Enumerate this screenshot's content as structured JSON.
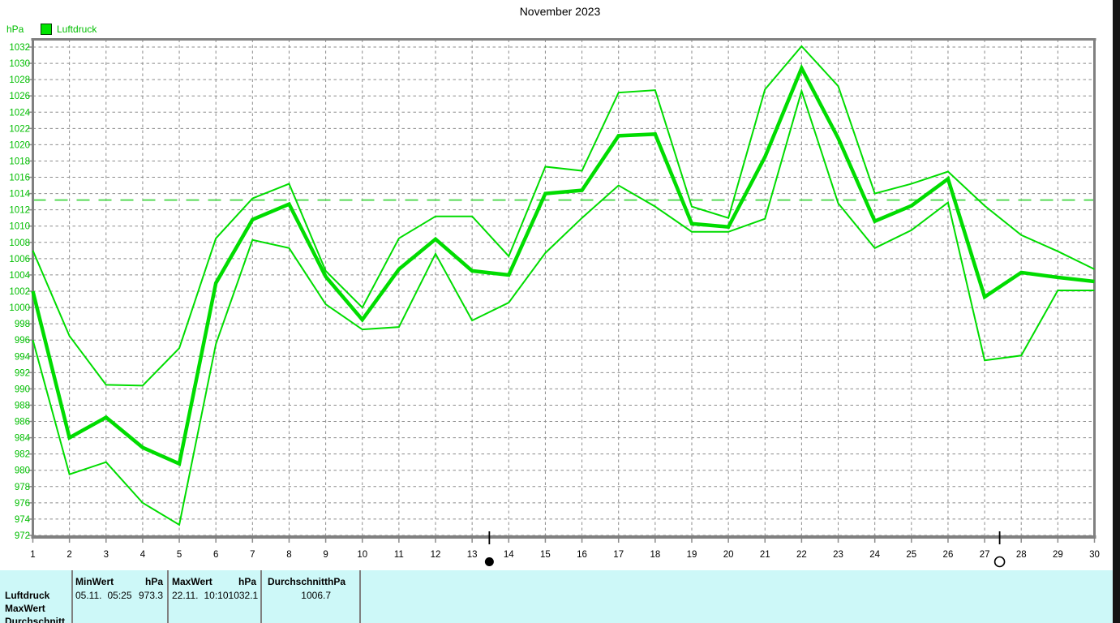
{
  "title": "November 2023",
  "y_axis_unit": "hPa",
  "legend": {
    "label": "Luftdruck"
  },
  "colors": {
    "series_green": "#00DC00",
    "label_green": "#00BE00",
    "reference_green": "#5ADB5A",
    "grid_grey": "#8C8C8C",
    "axis_grey": "#808080",
    "tick_black": "#000000",
    "table_background": "#CDF8F8"
  },
  "chart_data": {
    "type": "line",
    "title": "November 2023",
    "ylabel": "hPa",
    "xlabel": "",
    "x": [
      1,
      2,
      3,
      4,
      5,
      6,
      7,
      8,
      9,
      10,
      11,
      12,
      13,
      14,
      15,
      16,
      17,
      18,
      19,
      20,
      21,
      22,
      23,
      24,
      25,
      26,
      27,
      28,
      29,
      30
    ],
    "ylim": [
      972,
      1032
    ],
    "y_tick_step": 2,
    "grid": true,
    "legend_position": "top-left",
    "reference_line": {
      "value": 1013.2,
      "style": "dashed"
    },
    "series": [
      {
        "role": "daily-max",
        "values": [
          1007,
          996.5,
          990.5,
          990.4,
          995,
          1008.5,
          1013.4,
          1015.2,
          1004.5,
          1000,
          1008.5,
          1011.2,
          1011.2,
          1006.3,
          1017.3,
          1016.8,
          1026.4,
          1026.7,
          1012.4,
          1011,
          1026.8,
          1032.1,
          1027.2,
          1014,
          1015.2,
          1016.7,
          1012.5,
          1008.9,
          1006.9,
          1004.7
        ]
      },
      {
        "role": "daily-mean",
        "values": [
          1002,
          984,
          986.5,
          982.8,
          980.8,
          1003,
          1010.8,
          1012.7,
          1003.8,
          998.5,
          1004.7,
          1008.4,
          1004.5,
          1004,
          1014,
          1014.4,
          1021.1,
          1021.3,
          1010.3,
          1009.9,
          1018.5,
          1029.4,
          1020.8,
          1010.6,
          1012.5,
          1015.8,
          1001.3,
          1004.3,
          1003.7,
          1003.2
        ]
      },
      {
        "role": "daily-min",
        "values": [
          996,
          979.5,
          981,
          976,
          973.3,
          995.5,
          1008.3,
          1007.3,
          1000.4,
          997.3,
          997.6,
          1006.6,
          998.4,
          1000.6,
          1006.7,
          1011,
          1015,
          1012.4,
          1009.3,
          1009.3,
          1010.9,
          1026.6,
          1012.8,
          1007.3,
          1009.5,
          1012.9,
          993.5,
          994.1,
          1002.1,
          1002.1
        ]
      }
    ],
    "moon_markers": [
      {
        "type": "new-moon",
        "day": 13.47
      },
      {
        "type": "full-moon",
        "day": 27.41
      }
    ]
  },
  "summary_table": {
    "row_labels": [
      "Luftdruck",
      "MaxWert",
      "Durchschnitt"
    ],
    "columns": [
      {
        "header_label": "MinWert",
        "header_unit": "hPa",
        "value_date": "05.11.",
        "value_time": "05:25",
        "value": "973.3"
      },
      {
        "header_label": "MaxWert",
        "header_unit": "hPa",
        "value_date": "22.11.",
        "value_time": "10:10",
        "value": "1032.1"
      },
      {
        "header_label": "Durchschnitt",
        "header_unit": "hPa",
        "value_date": "",
        "value_time": "",
        "value": "1006.7"
      }
    ]
  }
}
